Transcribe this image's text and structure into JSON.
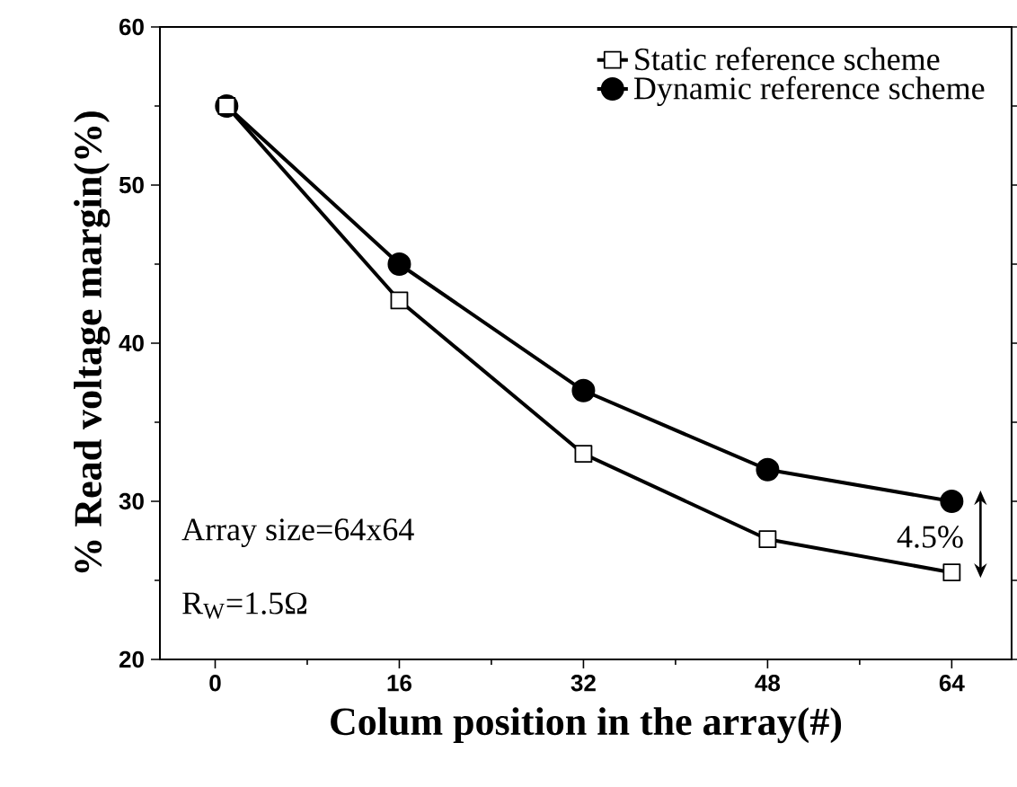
{
  "chart_data": {
    "type": "line",
    "xlabel": "Colum position in the array(#)",
    "ylabel": "% Read voltage margin(%)",
    "x": [
      1,
      16,
      32,
      48,
      64
    ],
    "series": [
      {
        "name": "Static reference scheme",
        "color": "#000000",
        "marker": "square",
        "values": [
          55,
          42.7,
          33,
          27.6,
          25.5
        ]
      },
      {
        "name": "Dynamic reference scheme",
        "color": "#000000",
        "marker": "circle",
        "values": [
          55,
          45,
          37,
          32,
          30
        ]
      }
    ],
    "xlim": [
      -4.8,
      69.2
    ],
    "xticks": [
      0,
      16,
      32,
      48,
      64
    ],
    "ylim": [
      20,
      60
    ],
    "yticks": [
      20,
      30,
      40,
      50,
      60
    ],
    "legend": "top right",
    "grid": false,
    "line_style": "solid",
    "annotations": [
      "4.5%",
      "Array size=64x64",
      "R$_{W}$=1.5Ω"
    ]
  }
}
